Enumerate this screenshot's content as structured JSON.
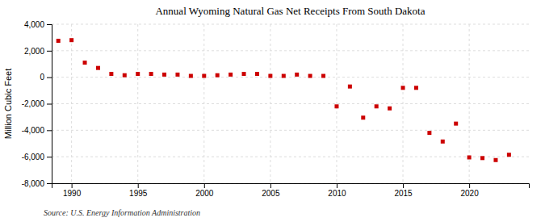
{
  "chart_data": {
    "type": "scatter",
    "title": "Annual Wyoming Natural Gas Net Receipts From South Dakota",
    "ylabel": "Million Cubic Feet",
    "annotations": [
      "Source: U.S. Energy Information Administration"
    ],
    "color": "#cc0000",
    "marker": "square",
    "x": [
      1989,
      1990,
      1991,
      1992,
      1993,
      1994,
      1995,
      1996,
      1997,
      1998,
      1999,
      2000,
      2001,
      2002,
      2003,
      2004,
      2005,
      2006,
      2007,
      2008,
      2009,
      2010,
      2011,
      2012,
      2013,
      2014,
      2015,
      2016,
      2017,
      2018,
      2019,
      2020,
      2021,
      2022,
      2023
    ],
    "values": [
      2750,
      2800,
      1100,
      700,
      250,
      150,
      250,
      250,
      200,
      200,
      100,
      100,
      150,
      200,
      250,
      250,
      100,
      100,
      200,
      100,
      100,
      -2200,
      -700,
      -3050,
      -2200,
      -2350,
      -800,
      -800,
      -4200,
      -4850,
      -3500,
      -6050,
      -6100,
      -6250,
      -5850
    ],
    "ylim": [
      -8000,
      4000
    ],
    "yticks": [
      {
        "value": -8000,
        "label": "-8,000"
      },
      {
        "value": -6000,
        "label": "-6,000"
      },
      {
        "value": -4000,
        "label": "-4,000"
      },
      {
        "value": -2000,
        "label": "-2,000"
      },
      0,
      {
        "value": 2000,
        "label": "2,000"
      },
      {
        "value": 4000,
        "label": "4,000"
      }
    ],
    "xlim": [
      1988.5,
      2024.5
    ],
    "xticks": [
      1990,
      1995,
      2000,
      2005,
      2010,
      2015,
      2020
    ],
    "grid": true
  }
}
